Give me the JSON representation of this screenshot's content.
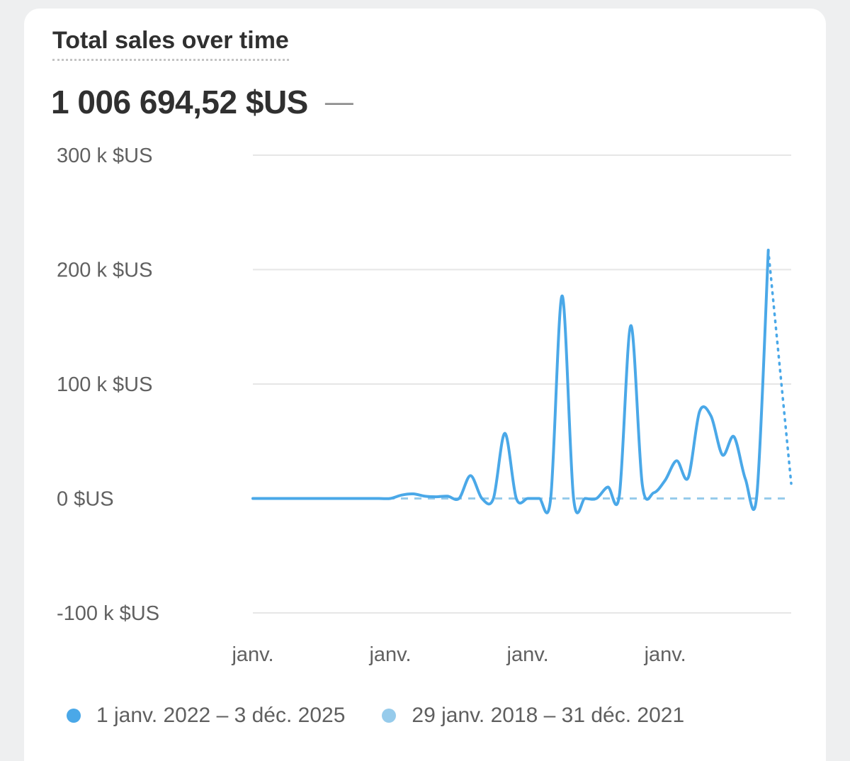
{
  "card": {
    "title": "Total sales over time",
    "total_value": "1 006 694,52 $US",
    "compare_value": "—"
  },
  "colors": {
    "primary_series": "#4aa8e8",
    "comparison_series": "#96cbeb",
    "grid": "#e6e6e6",
    "axis_text": "#616161"
  },
  "chart_data": {
    "type": "line",
    "title": "Total sales over time",
    "y_ticks": [
      "300 k $US",
      "200 k $US",
      "100 k $US",
      "0 $US",
      "-100 k $US"
    ],
    "y_tick_values": [
      300000,
      200000,
      100000,
      0,
      -100000
    ],
    "ylim": [
      -100000,
      300000
    ],
    "x_ticks": [
      "janv.",
      "janv.",
      "janv.",
      "janv."
    ],
    "x_tick_values": [
      "2022-01",
      "2023-01",
      "2024-01",
      "2025-01"
    ],
    "xlim": [
      "2022-01",
      "2025-12"
    ],
    "grid": true,
    "legend_position": "bottom",
    "series": [
      {
        "name": "1 janv. 2022 – 3 déc. 2025",
        "style": "solid",
        "color": "#4aa8e8",
        "points": [
          [
            "2022-01",
            0
          ],
          [
            "2022-04",
            0
          ],
          [
            "2022-07",
            0
          ],
          [
            "2022-10",
            0
          ],
          [
            "2022-12",
            0
          ],
          [
            "2023-01",
            0
          ],
          [
            "2023-02",
            3000
          ],
          [
            "2023-03",
            4000
          ],
          [
            "2023-04",
            2000
          ],
          [
            "2023-05",
            1500
          ],
          [
            "2023-06",
            2000
          ],
          [
            "2023-07",
            0
          ],
          [
            "2023-08",
            20000
          ],
          [
            "2023-09",
            0
          ],
          [
            "2023-10",
            0
          ],
          [
            "2023-11",
            57000
          ],
          [
            "2023-12",
            0
          ],
          [
            "2024-01",
            0
          ],
          [
            "2024-02",
            0
          ],
          [
            "2024-03",
            0
          ],
          [
            "2024-04",
            177000
          ],
          [
            "2024-05",
            0
          ],
          [
            "2024-06",
            0
          ],
          [
            "2024-07",
            0
          ],
          [
            "2024-08",
            10000
          ],
          [
            "2024-09",
            3000
          ],
          [
            "2024-10",
            151000
          ],
          [
            "2024-11",
            12000
          ],
          [
            "2024-12",
            5000
          ],
          [
            "2025-01",
            16000
          ],
          [
            "2025-02",
            33000
          ],
          [
            "2025-03",
            18000
          ],
          [
            "2025-04",
            76000
          ],
          [
            "2025-05",
            72000
          ],
          [
            "2025-06",
            38000
          ],
          [
            "2025-07",
            54000
          ],
          [
            "2025-08",
            17000
          ],
          [
            "2025-09",
            3000
          ],
          [
            "2025-10",
            217000
          ]
        ]
      },
      {
        "name": "29 janv. 2018 – 31 déc. 2021",
        "style": "dashed",
        "color": "#96cbeb",
        "points": [
          [
            "2022-01",
            0
          ],
          [
            "2025-12",
            0
          ]
        ]
      }
    ],
    "trailing_projection": {
      "style": "dotted",
      "from": [
        "2025-10",
        217000
      ],
      "to": [
        "2025-12",
        13000
      ]
    }
  },
  "legend": {
    "items": [
      {
        "label": "1 janv. 2022 – 3 déc. 2025",
        "color": "#4aa8e8"
      },
      {
        "label": "29 janv. 2018 – 31 déc. 2021",
        "color": "#96cbeb"
      }
    ]
  }
}
